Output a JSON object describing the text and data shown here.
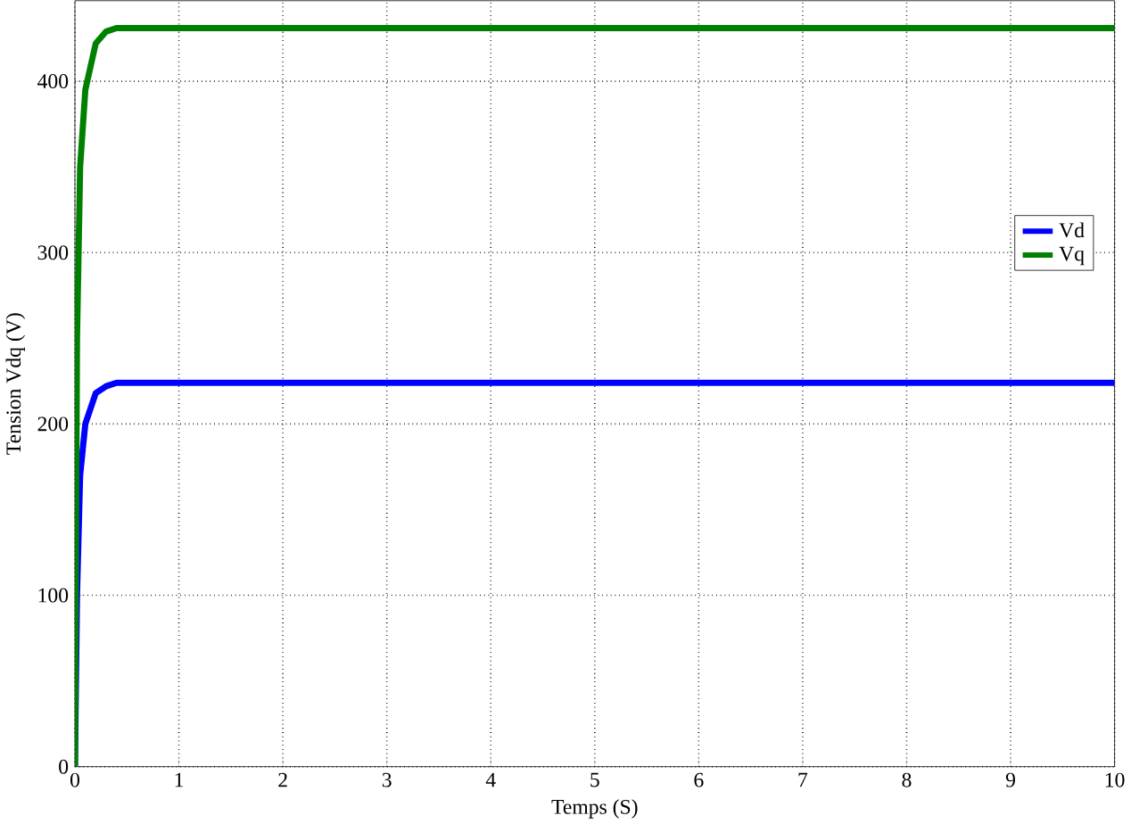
{
  "chart_data": {
    "type": "line",
    "xlabel": "Temps (S)",
    "ylabel": "Tension Vdq (V)",
    "xlim": [
      0,
      10
    ],
    "ylim": [
      0,
      447
    ],
    "xticks": [
      0,
      1,
      2,
      3,
      4,
      5,
      6,
      7,
      8,
      9,
      10
    ],
    "yticks": [
      0,
      100,
      200,
      300,
      400
    ],
    "grid": true,
    "legend": "right",
    "line_style": "solid",
    "marker": "none",
    "series": [
      {
        "name": "Vd",
        "color": "#0000ff",
        "x": [
          0,
          0.02,
          0.05,
          0.1,
          0.2,
          0.3,
          0.4,
          10
        ],
        "values": [
          0,
          100,
          170,
          200,
          218,
          222,
          224,
          224
        ]
      },
      {
        "name": "Vq",
        "color": "#008000",
        "x": [
          0,
          0.02,
          0.05,
          0.1,
          0.2,
          0.3,
          0.4,
          10
        ],
        "values": [
          0,
          250,
          350,
          395,
          422,
          429,
          431,
          431
        ]
      }
    ]
  }
}
